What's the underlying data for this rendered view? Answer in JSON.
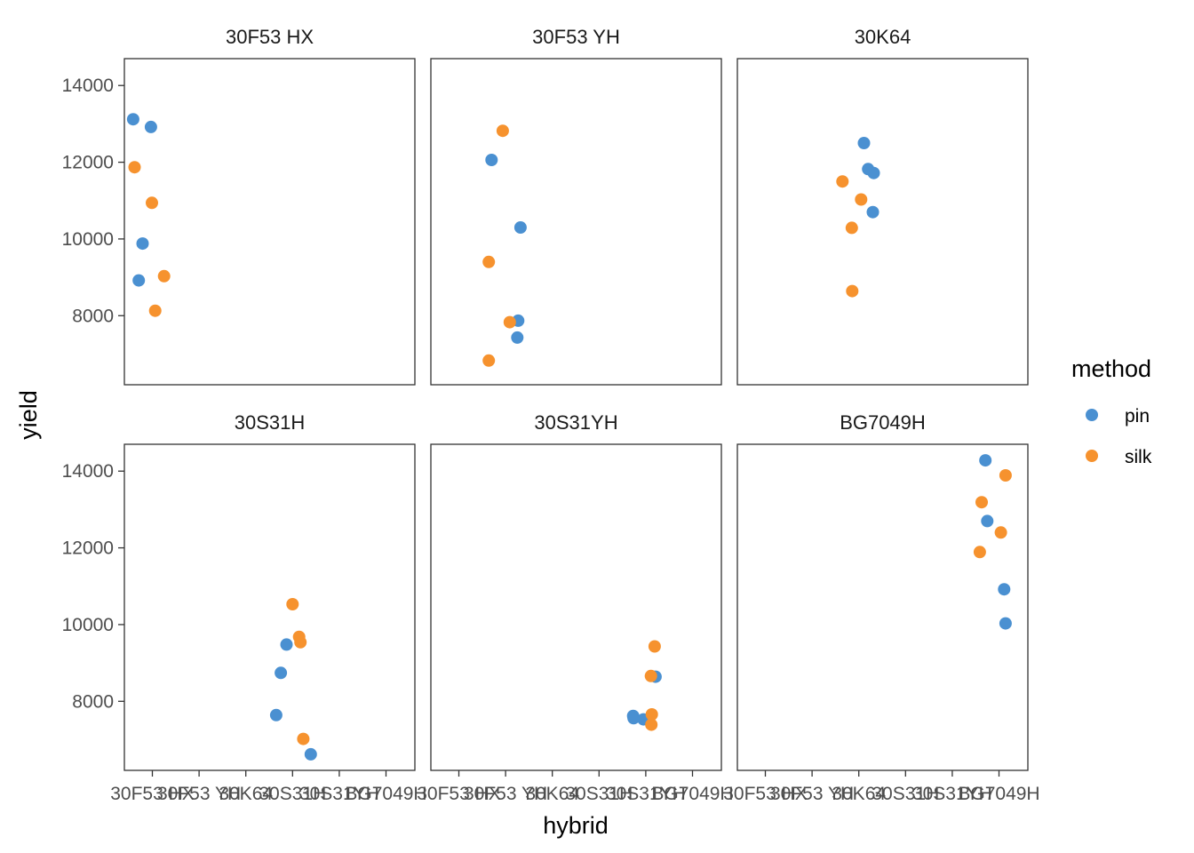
{
  "chart_data": {
    "type": "scatter",
    "xlabel": "hybrid",
    "ylabel": "yield",
    "x_categories": [
      "30F53 HX",
      "30F53 YH",
      "30K64",
      "30S31H",
      "30S31YH",
      "BG7049H"
    ],
    "ylim": [
      6200,
      14700
    ],
    "yticks": [
      8000,
      10000,
      12000,
      14000
    ],
    "legend": {
      "title": "method",
      "position": "right",
      "entries": [
        {
          "label": "pin",
          "color": "#4A90D1"
        },
        {
          "label": "silk",
          "color": "#F6922E"
        }
      ]
    },
    "facets": [
      {
        "title": "30F53 HX",
        "points": [
          {
            "x": 0.59,
            "y": 13120,
            "method": "pin"
          },
          {
            "x": 0.97,
            "y": 12920,
            "method": "pin"
          },
          {
            "x": 0.79,
            "y": 9880,
            "method": "pin"
          },
          {
            "x": 0.71,
            "y": 8920,
            "method": "pin"
          },
          {
            "x": 0.62,
            "y": 11870,
            "method": "silk"
          },
          {
            "x": 0.99,
            "y": 10940,
            "method": "silk"
          },
          {
            "x": 1.25,
            "y": 9030,
            "method": "silk"
          },
          {
            "x": 1.06,
            "y": 8130,
            "method": "silk"
          }
        ]
      },
      {
        "title": "30F53 YH",
        "points": [
          {
            "x": 1.7,
            "y": 12060,
            "method": "pin"
          },
          {
            "x": 2.32,
            "y": 10300,
            "method": "pin"
          },
          {
            "x": 2.27,
            "y": 7870,
            "method": "pin"
          },
          {
            "x": 2.25,
            "y": 7430,
            "method": "pin"
          },
          {
            "x": 1.94,
            "y": 12820,
            "method": "silk"
          },
          {
            "x": 1.64,
            "y": 9400,
            "method": "silk"
          },
          {
            "x": 2.09,
            "y": 7830,
            "method": "silk"
          },
          {
            "x": 1.64,
            "y": 6830,
            "method": "silk"
          }
        ]
      },
      {
        "title": "30K64",
        "points": [
          {
            "x": 3.11,
            "y": 12500,
            "method": "pin"
          },
          {
            "x": 3.2,
            "y": 11820,
            "method": "pin"
          },
          {
            "x": 3.32,
            "y": 11720,
            "method": "pin"
          },
          {
            "x": 3.3,
            "y": 10700,
            "method": "pin"
          },
          {
            "x": 2.65,
            "y": 11500,
            "method": "silk"
          },
          {
            "x": 3.05,
            "y": 11030,
            "method": "silk"
          },
          {
            "x": 2.85,
            "y": 10290,
            "method": "silk"
          },
          {
            "x": 2.86,
            "y": 8640,
            "method": "silk"
          }
        ]
      },
      {
        "title": "30S31H",
        "points": [
          {
            "x": 3.87,
            "y": 9480,
            "method": "pin"
          },
          {
            "x": 3.75,
            "y": 8740,
            "method": "pin"
          },
          {
            "x": 3.65,
            "y": 7640,
            "method": "pin"
          },
          {
            "x": 4.39,
            "y": 6620,
            "method": "pin"
          },
          {
            "x": 4.0,
            "y": 10530,
            "method": "silk"
          },
          {
            "x": 4.14,
            "y": 9680,
            "method": "silk"
          },
          {
            "x": 4.17,
            "y": 9540,
            "method": "silk"
          },
          {
            "x": 4.23,
            "y": 7020,
            "method": "silk"
          }
        ]
      },
      {
        "title": "30S31YH",
        "points": [
          {
            "x": 4.73,
            "y": 7620,
            "method": "pin"
          },
          {
            "x": 4.74,
            "y": 7560,
            "method": "pin"
          },
          {
            "x": 4.95,
            "y": 7530,
            "method": "pin"
          },
          {
            "x": 5.21,
            "y": 8640,
            "method": "pin"
          },
          {
            "x": 5.19,
            "y": 9430,
            "method": "silk"
          },
          {
            "x": 5.11,
            "y": 8660,
            "method": "silk"
          },
          {
            "x": 5.13,
            "y": 7660,
            "method": "silk"
          },
          {
            "x": 5.12,
            "y": 7390,
            "method": "silk"
          }
        ]
      },
      {
        "title": "BG7049H",
        "points": [
          {
            "x": 5.71,
            "y": 14280,
            "method": "pin"
          },
          {
            "x": 5.75,
            "y": 12700,
            "method": "pin"
          },
          {
            "x": 6.11,
            "y": 10920,
            "method": "pin"
          },
          {
            "x": 6.14,
            "y": 10030,
            "method": "pin"
          },
          {
            "x": 6.14,
            "y": 13890,
            "method": "silk"
          },
          {
            "x": 5.63,
            "y": 13190,
            "method": "silk"
          },
          {
            "x": 6.04,
            "y": 12400,
            "method": "silk"
          },
          {
            "x": 5.59,
            "y": 11890,
            "method": "silk"
          }
        ]
      }
    ]
  }
}
